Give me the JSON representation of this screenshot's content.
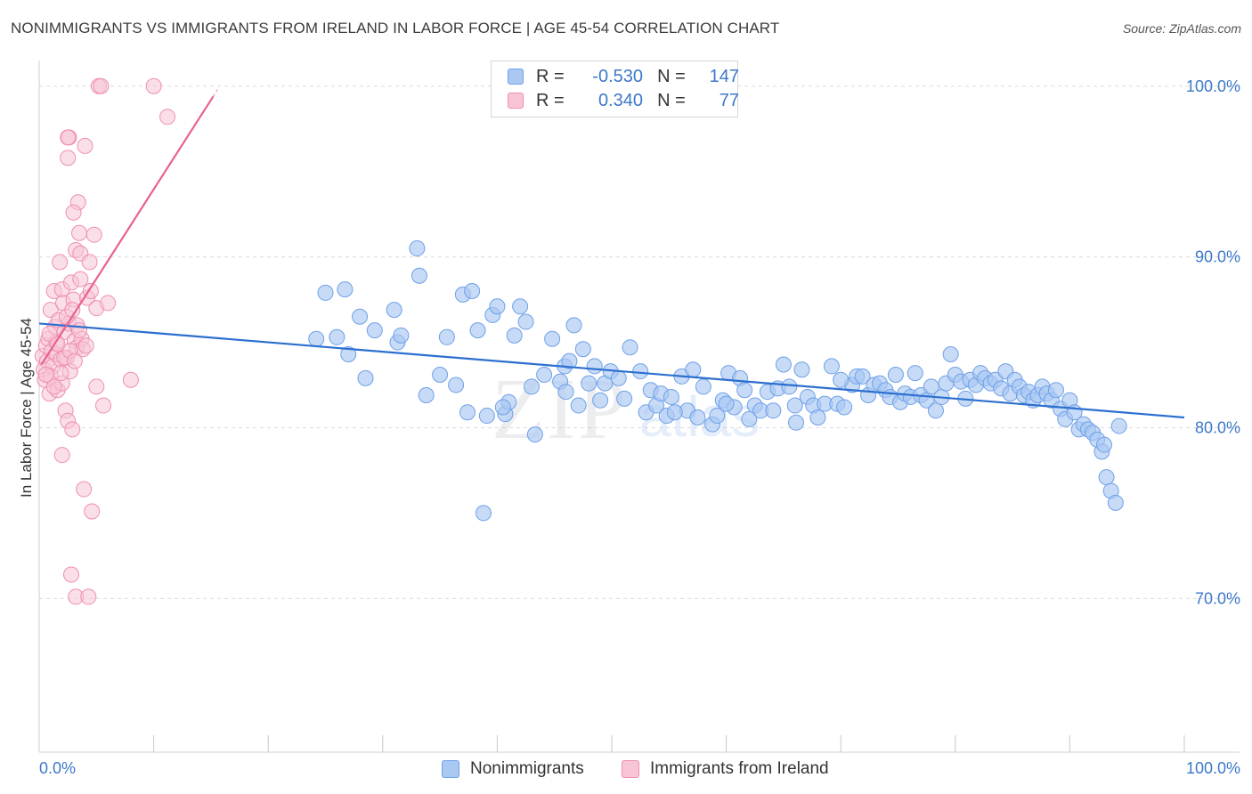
{
  "header": {
    "title": "NONIMMIGRANTS VS IMMIGRANTS FROM IRELAND IN LABOR FORCE | AGE 45-54 CORRELATION CHART",
    "source": "Source: ZipAtlas.com"
  },
  "legend": {
    "rows": [
      {
        "r_label": "R =",
        "r_value": "-0.530",
        "n_label": "N =",
        "n_value": "147",
        "color": "#6fa0e8"
      },
      {
        "r_label": "R =",
        "r_value": "0.340",
        "n_label": "N =",
        "n_value": "77",
        "color": "#f08cae"
      }
    ],
    "series": [
      "Nonimmigrants",
      "Immigrants from Ireland"
    ]
  },
  "watermark": {
    "zip": "ZIP",
    "atlas": "atlas"
  },
  "chart_data": {
    "type": "scatter",
    "title": "NONIMMIGRANTS VS IMMIGRANTS FROM IRELAND IN LABOR FORCE | AGE 45-54 CORRELATION CHART",
    "xlabel": "",
    "ylabel": "In Labor Force | Age 45-54",
    "xlim": [
      0,
      100
    ],
    "ylim": [
      61,
      101.5
    ],
    "x_tick_labels": [
      "0.0%",
      "100.0%"
    ],
    "y_ticks": [
      70,
      80,
      90,
      100
    ],
    "y_tick_labels": [
      "70.0%",
      "80.0%",
      "90.0%",
      "100.0%"
    ],
    "grid": true,
    "colors": {
      "blue_fill": "#a9c8f2",
      "blue_stroke": "#6fa0e8",
      "blue_line": "#2c6fcf",
      "pink_fill": "#f8c5d6",
      "pink_stroke": "#ee8fb0",
      "pink_line": "#e8628f",
      "tick_text": "#3d78c9",
      "grid": "#dcdcdc"
    },
    "series": [
      {
        "name": "Nonimmigrants",
        "trend": {
          "x": [
            0,
            100
          ],
          "y": [
            86.1,
            80.6
          ]
        },
        "points": [
          [
            24.2,
            85.2
          ],
          [
            25.0,
            87.9
          ],
          [
            26.0,
            85.3
          ],
          [
            26.7,
            88.1
          ],
          [
            27.0,
            84.3
          ],
          [
            28.0,
            86.5
          ],
          [
            28.5,
            82.9
          ],
          [
            29.3,
            85.7
          ],
          [
            31.0,
            86.9
          ],
          [
            31.3,
            85.0
          ],
          [
            31.6,
            85.4
          ],
          [
            33.0,
            90.5
          ],
          [
            33.2,
            88.9
          ],
          [
            33.8,
            81.9
          ],
          [
            35.0,
            83.1
          ],
          [
            35.6,
            85.3
          ],
          [
            36.4,
            82.5
          ],
          [
            37.0,
            87.8
          ],
          [
            37.4,
            80.9
          ],
          [
            37.8,
            88.0
          ],
          [
            38.3,
            85.7
          ],
          [
            38.8,
            75.0
          ],
          [
            39.1,
            80.7
          ],
          [
            39.6,
            86.6
          ],
          [
            40.0,
            87.1
          ],
          [
            40.7,
            80.8
          ],
          [
            41.0,
            81.5
          ],
          [
            41.5,
            85.4
          ],
          [
            42.0,
            87.1
          ],
          [
            42.5,
            86.2
          ],
          [
            43.0,
            82.4
          ],
          [
            43.3,
            79.6
          ],
          [
            44.1,
            83.1
          ],
          [
            44.8,
            85.2
          ],
          [
            45.5,
            82.7
          ],
          [
            45.9,
            83.6
          ],
          [
            46.3,
            83.9
          ],
          [
            46.7,
            86.0
          ],
          [
            47.1,
            81.3
          ],
          [
            47.5,
            84.6
          ],
          [
            48.0,
            82.6
          ],
          [
            48.5,
            83.6
          ],
          [
            49.0,
            81.6
          ],
          [
            49.4,
            82.6
          ],
          [
            49.9,
            83.3
          ],
          [
            50.6,
            82.9
          ],
          [
            51.1,
            81.7
          ],
          [
            51.6,
            84.7
          ],
          [
            52.5,
            83.3
          ],
          [
            53.0,
            80.9
          ],
          [
            53.4,
            82.2
          ],
          [
            53.9,
            81.3
          ],
          [
            54.3,
            82.0
          ],
          [
            54.8,
            80.7
          ],
          [
            55.2,
            81.8
          ],
          [
            56.1,
            83.0
          ],
          [
            56.6,
            81.0
          ],
          [
            57.1,
            83.4
          ],
          [
            57.5,
            80.6
          ],
          [
            58.0,
            82.4
          ],
          [
            58.8,
            80.2
          ],
          [
            59.2,
            80.7
          ],
          [
            59.7,
            81.6
          ],
          [
            60.2,
            83.2
          ],
          [
            60.7,
            81.2
          ],
          [
            61.2,
            82.9
          ],
          [
            61.6,
            82.2
          ],
          [
            62.0,
            80.5
          ],
          [
            62.5,
            81.3
          ],
          [
            63.0,
            81.0
          ],
          [
            63.6,
            82.1
          ],
          [
            64.1,
            81.0
          ],
          [
            64.5,
            82.3
          ],
          [
            65.0,
            83.7
          ],
          [
            65.5,
            82.4
          ],
          [
            66.1,
            80.3
          ],
          [
            66.6,
            83.4
          ],
          [
            67.1,
            81.8
          ],
          [
            67.6,
            81.3
          ],
          [
            68.0,
            80.6
          ],
          [
            68.6,
            81.4
          ],
          [
            69.2,
            83.6
          ],
          [
            69.7,
            81.4
          ],
          [
            70.3,
            81.2
          ],
          [
            71.0,
            82.5
          ],
          [
            71.4,
            83.0
          ],
          [
            71.9,
            83.0
          ],
          [
            72.4,
            81.9
          ],
          [
            72.9,
            82.5
          ],
          [
            73.4,
            82.6
          ],
          [
            73.9,
            82.2
          ],
          [
            74.3,
            81.8
          ],
          [
            74.8,
            83.1
          ],
          [
            75.2,
            81.5
          ],
          [
            75.6,
            82.0
          ],
          [
            76.1,
            81.8
          ],
          [
            76.5,
            83.2
          ],
          [
            77.0,
            81.9
          ],
          [
            77.5,
            81.6
          ],
          [
            77.9,
            82.4
          ],
          [
            78.3,
            81.0
          ],
          [
            78.8,
            81.8
          ],
          [
            79.2,
            82.6
          ],
          [
            79.6,
            84.3
          ],
          [
            80.0,
            83.1
          ],
          [
            80.5,
            82.7
          ],
          [
            80.9,
            81.7
          ],
          [
            81.3,
            82.8
          ],
          [
            81.8,
            82.5
          ],
          [
            82.2,
            83.2
          ],
          [
            82.6,
            82.9
          ],
          [
            83.1,
            82.6
          ],
          [
            83.5,
            82.8
          ],
          [
            84.0,
            82.3
          ],
          [
            84.4,
            83.3
          ],
          [
            84.8,
            82.0
          ],
          [
            85.2,
            82.8
          ],
          [
            85.6,
            82.4
          ],
          [
            86.0,
            81.9
          ],
          [
            86.4,
            82.1
          ],
          [
            86.8,
            81.6
          ],
          [
            87.2,
            81.9
          ],
          [
            87.6,
            82.4
          ],
          [
            88.0,
            82.0
          ],
          [
            88.4,
            81.6
          ],
          [
            88.8,
            82.2
          ],
          [
            89.2,
            81.1
          ],
          [
            89.6,
            80.5
          ],
          [
            90.0,
            81.6
          ],
          [
            90.4,
            80.9
          ],
          [
            90.8,
            79.9
          ],
          [
            91.2,
            80.2
          ],
          [
            91.6,
            79.9
          ],
          [
            92.0,
            79.7
          ],
          [
            92.4,
            79.3
          ],
          [
            92.8,
            78.6
          ],
          [
            93.2,
            77.1
          ],
          [
            93.6,
            76.3
          ],
          [
            94.0,
            75.6
          ],
          [
            94.3,
            80.1
          ],
          [
            93.0,
            79.0
          ],
          [
            40.5,
            81.2
          ],
          [
            46.0,
            82.1
          ],
          [
            55.5,
            80.9
          ],
          [
            60.0,
            81.4
          ],
          [
            66.0,
            81.3
          ],
          [
            70.0,
            82.8
          ]
        ]
      },
      {
        "name": "Immigrants from Ireland",
        "trend": {
          "x": [
            0.2,
            15.2
          ],
          "y": [
            83.7,
            99.4
          ]
        },
        "points": [
          [
            0.3,
            84.2
          ],
          [
            0.4,
            83.4
          ],
          [
            0.5,
            82.8
          ],
          [
            0.6,
            84.8
          ],
          [
            0.7,
            83.9
          ],
          [
            0.8,
            85.2
          ],
          [
            0.9,
            82.0
          ],
          [
            1.0,
            86.9
          ],
          [
            1.1,
            84.5
          ],
          [
            1.2,
            83.6
          ],
          [
            1.3,
            88.0
          ],
          [
            1.4,
            85.9
          ],
          [
            1.5,
            84.3
          ],
          [
            1.6,
            82.2
          ],
          [
            1.7,
            86.3
          ],
          [
            1.8,
            89.7
          ],
          [
            1.9,
            84.0
          ],
          [
            2.0,
            88.1
          ],
          [
            2.1,
            87.3
          ],
          [
            2.2,
            85.6
          ],
          [
            2.3,
            81.0
          ],
          [
            2.4,
            84.1
          ],
          [
            2.5,
            80.4
          ],
          [
            2.6,
            86.1
          ],
          [
            2.7,
            83.3
          ],
          [
            2.8,
            88.5
          ],
          [
            2.9,
            79.9
          ],
          [
            3.0,
            87.5
          ],
          [
            3.1,
            85.1
          ],
          [
            3.2,
            90.4
          ],
          [
            3.3,
            84.7
          ],
          [
            3.4,
            93.2
          ],
          [
            3.5,
            91.4
          ],
          [
            3.6,
            90.2
          ],
          [
            3.7,
            85.2
          ],
          [
            3.8,
            84.6
          ],
          [
            3.9,
            76.4
          ],
          [
            4.0,
            96.5
          ],
          [
            4.2,
            87.6
          ],
          [
            4.4,
            89.7
          ],
          [
            4.6,
            75.1
          ],
          [
            4.8,
            91.3
          ],
          [
            5.0,
            87.0
          ],
          [
            5.2,
            100.0
          ],
          [
            5.4,
            100.0
          ],
          [
            5.6,
            81.3
          ],
          [
            3.0,
            92.6
          ],
          [
            2.6,
            97.0
          ],
          [
            2.5,
            95.8
          ],
          [
            2.0,
            78.4
          ],
          [
            2.8,
            71.4
          ],
          [
            3.2,
            70.1
          ],
          [
            4.3,
            70.1
          ],
          [
            5.0,
            82.4
          ],
          [
            6.0,
            87.3
          ],
          [
            8.0,
            82.8
          ],
          [
            10.0,
            100.0
          ],
          [
            11.2,
            98.2
          ],
          [
            1.0,
            83.0
          ],
          [
            1.5,
            85.0
          ],
          [
            2.0,
            82.6
          ],
          [
            3.3,
            86.0
          ],
          [
            4.1,
            84.8
          ],
          [
            2.2,
            84.1
          ],
          [
            0.9,
            85.5
          ],
          [
            1.9,
            83.2
          ],
          [
            2.7,
            84.5
          ],
          [
            3.5,
            85.7
          ],
          [
            1.3,
            82.4
          ],
          [
            0.6,
            83.1
          ],
          [
            1.6,
            84.9
          ],
          [
            2.4,
            86.5
          ],
          [
            3.1,
            83.9
          ],
          [
            2.9,
            86.9
          ],
          [
            3.6,
            88.7
          ],
          [
            4.5,
            88.0
          ],
          [
            2.5,
            97.0
          ]
        ]
      }
    ]
  }
}
